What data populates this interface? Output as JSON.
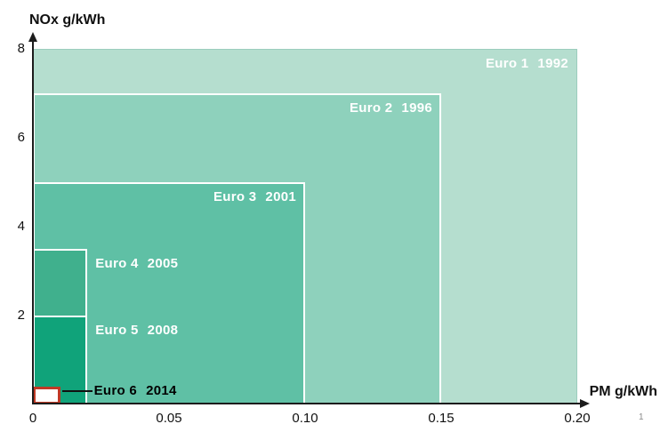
{
  "chart_data": {
    "type": "area",
    "subtype": "nested-rectangles-emission-limits",
    "title": "",
    "xlabel": "PM g/kWh",
    "ylabel": "NOx g/kWh",
    "xlim": [
      0,
      0.21
    ],
    "ylim": [
      0,
      8
    ],
    "x_ticks": [
      "0",
      "0.05",
      "0.10",
      "0.15",
      "0.20"
    ],
    "x_tick_values": [
      0,
      0.05,
      0.1,
      0.15,
      0.2
    ],
    "y_ticks": [
      "8",
      "6",
      "4",
      "2"
    ],
    "y_tick_values": [
      8,
      6,
      4,
      2
    ],
    "grid": false,
    "legend_position": "labels-on-rectangles",
    "series": [
      {
        "label": "Euro 1",
        "year": "1992",
        "nox_g_per_kwh": 8.0,
        "pm_g_per_kwh": 0.2,
        "fill": "#b5decf",
        "border": "#9ccdbd",
        "border_width": 1,
        "label_color": "#ffffff",
        "label_placement": "inside-top-right"
      },
      {
        "label": "Euro 2",
        "year": "1996",
        "nox_g_per_kwh": 7.0,
        "pm_g_per_kwh": 0.15,
        "fill": "#8ed1bc",
        "border": "#ffffff",
        "border_width": 2,
        "label_color": "#ffffff",
        "label_placement": "inside-top-right"
      },
      {
        "label": "Euro 3",
        "year": "2001",
        "nox_g_per_kwh": 5.0,
        "pm_g_per_kwh": 0.1,
        "fill": "#5fc0a5",
        "border": "#ffffff",
        "border_width": 2,
        "label_color": "#ffffff",
        "label_placement": "inside-top-right"
      },
      {
        "label": "Euro 4",
        "year": "2005",
        "nox_g_per_kwh": 3.5,
        "pm_g_per_kwh": 0.02,
        "fill": "#40b08d",
        "border": "#ffffff",
        "border_width": 2,
        "label_color": "#ffffff",
        "label_placement": "outside-right"
      },
      {
        "label": "Euro 5",
        "year": "2008",
        "nox_g_per_kwh": 2.0,
        "pm_g_per_kwh": 0.02,
        "fill": "#10a37a",
        "border": "#ffffff",
        "border_width": 2,
        "label_color": "#ffffff",
        "label_placement": "outside-right"
      },
      {
        "label": "Euro 6",
        "year": "2014",
        "nox_g_per_kwh": 0.4,
        "pm_g_per_kwh": 0.01,
        "fill": "#ffffff",
        "border": "#bf3a26",
        "border_width": 3,
        "label_color": "#000000",
        "label_placement": "outside-right-callout"
      }
    ],
    "footnote": "1"
  }
}
